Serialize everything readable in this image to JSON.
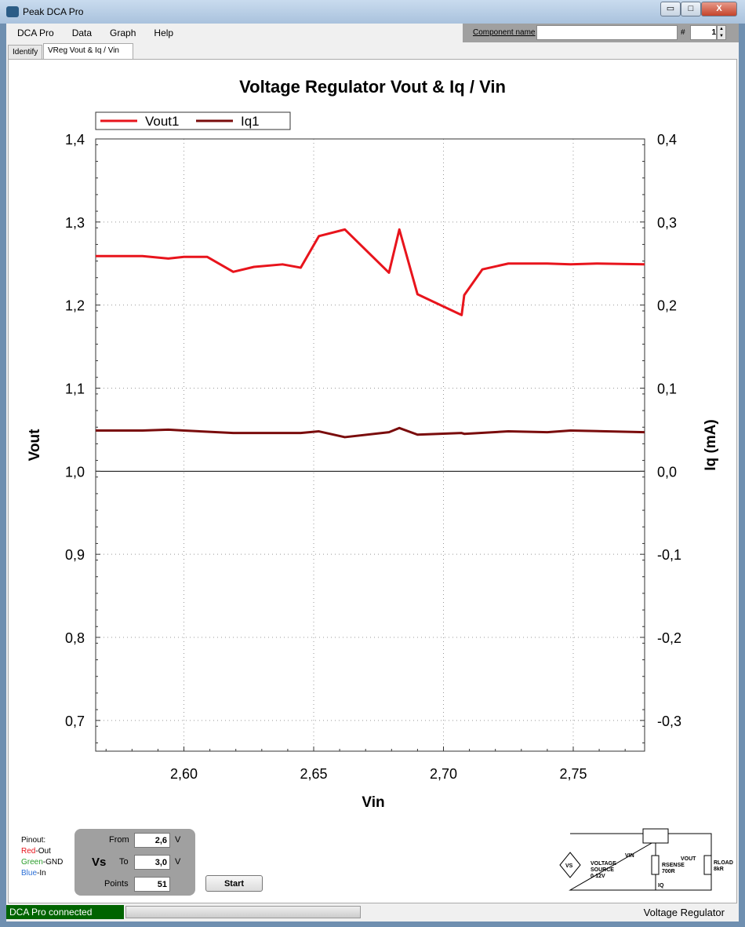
{
  "window": {
    "title": "Peak DCA Pro",
    "min": "▭",
    "max": "□",
    "close": "X"
  },
  "menu": [
    "DCA Pro",
    "Data",
    "Graph",
    "Help"
  ],
  "component": {
    "label": "Component name",
    "value": "",
    "hash": "#",
    "number": "1"
  },
  "tabs": [
    "Identify",
    "VReg Vout & Iq / Vin"
  ],
  "chart_data": {
    "type": "line",
    "title": "Voltage Regulator Vout & Iq / Vin",
    "xlabel": "Vin",
    "ylabel": "Vout",
    "y2label": "Iq (mA)",
    "xlim": [
      2.566,
      2.7775
    ],
    "ylim": [
      0.663,
      1.4
    ],
    "y2lim": [
      -0.337,
      0.4
    ],
    "xticks": [
      "2,60",
      "2,65",
      "2,70",
      "2,75"
    ],
    "xtick_values": [
      2.6,
      2.65,
      2.7,
      2.75
    ],
    "yticks": [
      "1,4",
      "1,3",
      "1,2",
      "1,1",
      "1,0",
      "0,9",
      "0,8",
      "0,7"
    ],
    "ytick_values": [
      1.4,
      1.3,
      1.2,
      1.1,
      1.0,
      0.9,
      0.8,
      0.7
    ],
    "y2ticks": [
      "0,4",
      "0,3",
      "0,2",
      "0,1",
      "0,0",
      "-0,1",
      "-0,2",
      "-0,3"
    ],
    "y2tick_values": [
      0.4,
      0.3,
      0.2,
      0.1,
      0.0,
      -0.1,
      -0.2,
      -0.3
    ],
    "grid": true,
    "legend": "top-left",
    "series": [
      {
        "name": "Vout1",
        "axis": "left",
        "color": "#e8141c",
        "points": [
          [
            2.566,
            1.259
          ],
          [
            2.584,
            1.259
          ],
          [
            2.594,
            1.256
          ],
          [
            2.6,
            1.258
          ],
          [
            2.609,
            1.258
          ],
          [
            2.619,
            1.24
          ],
          [
            2.627,
            1.246
          ],
          [
            2.638,
            1.249
          ],
          [
            2.645,
            1.245
          ],
          [
            2.652,
            1.283
          ],
          [
            2.662,
            1.291
          ],
          [
            2.679,
            1.239
          ],
          [
            2.683,
            1.291
          ],
          [
            2.69,
            1.213
          ],
          [
            2.707,
            1.188
          ],
          [
            2.708,
            1.212
          ],
          [
            2.715,
            1.243
          ],
          [
            2.725,
            1.25
          ],
          [
            2.74,
            1.25
          ],
          [
            2.749,
            1.249
          ],
          [
            2.759,
            1.25
          ],
          [
            2.7775,
            1.249
          ]
        ]
      },
      {
        "name": "Iq1",
        "axis": "right",
        "color": "#7a0c0c",
        "points": [
          [
            2.566,
            0.049
          ],
          [
            2.584,
            0.049
          ],
          [
            2.594,
            0.05
          ],
          [
            2.6,
            0.049
          ],
          [
            2.619,
            0.046
          ],
          [
            2.638,
            0.046
          ],
          [
            2.645,
            0.046
          ],
          [
            2.652,
            0.048
          ],
          [
            2.662,
            0.041
          ],
          [
            2.679,
            0.047
          ],
          [
            2.683,
            0.052
          ],
          [
            2.69,
            0.044
          ],
          [
            2.707,
            0.046
          ],
          [
            2.708,
            0.045
          ],
          [
            2.725,
            0.048
          ],
          [
            2.74,
            0.047
          ],
          [
            2.749,
            0.049
          ],
          [
            2.7775,
            0.047
          ]
        ]
      }
    ]
  },
  "pinout": {
    "title": "Pinout:",
    "red": "Red",
    "red_s": "-Out",
    "green": "Green",
    "green_s": "-GND",
    "blue": "Blue",
    "blue_s": "-In"
  },
  "sweep": {
    "vs": "Vs",
    "from_label": "From",
    "from": "2,6",
    "to_label": "To",
    "to": "3,0",
    "points_label": "Points",
    "points": "51",
    "unit": "V"
  },
  "start": "Start",
  "circuit": {
    "vs": "VS",
    "source": "VOLTAGE",
    "source2": "SOURCE",
    "range": "0-12V",
    "vin": "VIN",
    "vout": "VOUT",
    "rsense": "RSENSE",
    "rsense_v": "700R",
    "rload": "RLOAD",
    "rload_v": "8kR",
    "iq": "IQ"
  },
  "status": {
    "left": "DCA Pro connected",
    "right": "Voltage Regulator",
    "progress": 0
  }
}
